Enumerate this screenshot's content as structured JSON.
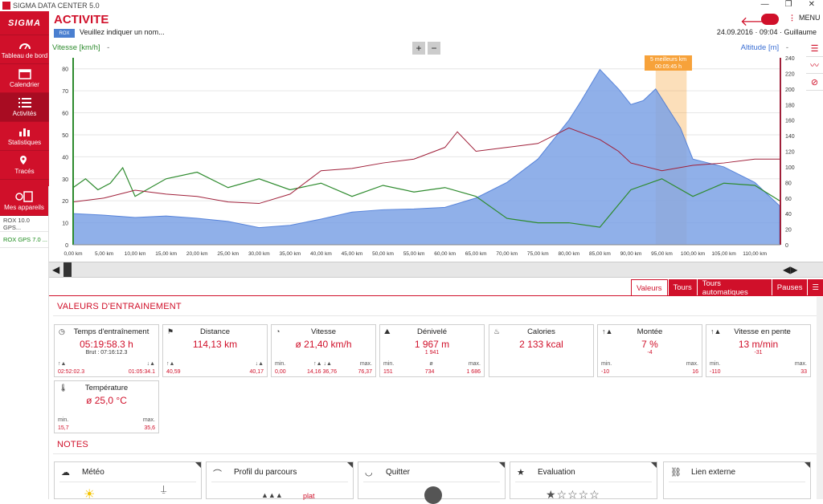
{
  "window": {
    "title": "SIGMA DATA CENTER 5.0"
  },
  "sidebar": {
    "logo": "SIGMA",
    "items": [
      {
        "label": "Tableau de bord"
      },
      {
        "label": "Calendrier"
      },
      {
        "label": "Activités"
      },
      {
        "label": "Statistiques"
      },
      {
        "label": "Tracés"
      },
      {
        "label": "Mes appareils"
      }
    ],
    "devices": [
      "ROX 10.0 GPS...",
      "ROX GPS 7.0 ..."
    ]
  },
  "header": {
    "title": "ACTIVITE",
    "bike_badge": "ROX",
    "name_placeholder": "Veuillez indiquer un nom...",
    "menu_label": "MENU",
    "date": "24.09.2016",
    "time": "09:04",
    "user": "Guillaume"
  },
  "chart": {
    "left_label": "Vitesse [km/h]",
    "left_label_suffix": "-",
    "right_label": "Altitude [m]",
    "right_label_suffix": "-",
    "zoom_in": "+",
    "zoom_out": "−",
    "highlight_line1": "5 meilleurs km",
    "highlight_line2": "00:05:45 h"
  },
  "chart_data": {
    "type": "area",
    "x_ticks": [
      "0,00 km",
      "5,00 km",
      "10,00 km",
      "15,00 km",
      "20,00 km",
      "25,00 km",
      "30,00 km",
      "35,00 km",
      "40,00 km",
      "45,00 km",
      "50,00 km",
      "55,00 km",
      "60,00 km",
      "65,00 km",
      "70,00 km",
      "75,00 km",
      "80,00 km",
      "85,00 km",
      "90,00 km",
      "95,00 km",
      "100,00 km",
      "105,00 km",
      "110,00 km"
    ],
    "xlim": [
      0,
      114.13
    ],
    "ylim_left": [
      0,
      85
    ],
    "ylim_right": [
      0,
      240
    ],
    "y_ticks_left": [
      0,
      10,
      20,
      30,
      40,
      50,
      60,
      70,
      80
    ],
    "y_ticks_right": [
      0,
      20,
      40,
      60,
      80,
      100,
      120,
      140,
      160,
      180,
      200,
      220,
      240
    ],
    "colors": {
      "altitude_fill": "#7da3e6",
      "altitude_line": "#3b6fd4",
      "speed": "#2e8b2e",
      "heartrate": "#a0203a",
      "highlight": "#f7a23a"
    },
    "altitude": {
      "x": [
        0,
        5,
        10,
        15,
        20,
        25,
        30,
        35,
        40,
        45,
        50,
        55,
        60,
        65,
        70,
        75,
        80,
        82,
        85,
        88,
        90,
        92,
        94,
        96,
        98,
        100,
        105,
        110,
        114
      ],
      "y": [
        40,
        38,
        35,
        37,
        34,
        30,
        22,
        25,
        33,
        42,
        45,
        46,
        48,
        60,
        80,
        110,
        160,
        185,
        225,
        200,
        180,
        185,
        200,
        175,
        150,
        110,
        100,
        80,
        50
      ]
    },
    "speed": {
      "x": [
        0,
        2,
        4,
        6,
        8,
        10,
        15,
        20,
        25,
        30,
        35,
        40,
        45,
        50,
        55,
        60,
        65,
        70,
        75,
        80,
        85,
        90,
        95,
        100,
        105,
        110,
        114
      ],
      "y": [
        26,
        30,
        25,
        28,
        35,
        22,
        30,
        33,
        26,
        30,
        25,
        28,
        22,
        27,
        24,
        26,
        22,
        12,
        10,
        10,
        8,
        25,
        30,
        22,
        28,
        27,
        20
      ]
    },
    "heartrate": {
      "x": [
        0,
        5,
        10,
        15,
        20,
        25,
        30,
        35,
        40,
        45,
        50,
        55,
        60,
        62,
        65,
        70,
        75,
        80,
        85,
        88,
        90,
        95,
        100,
        105,
        110,
        114
      ],
      "y": [
        55,
        60,
        70,
        65,
        62,
        55,
        53,
        65,
        95,
        98,
        105,
        110,
        125,
        145,
        120,
        125,
        130,
        150,
        135,
        120,
        105,
        95,
        102,
        105,
        110,
        110
      ]
    },
    "highlight_range_km": [
      94,
      99
    ]
  },
  "tabs": [
    "Valeurs",
    "Tours",
    "Tours automatiques",
    "Pauses"
  ],
  "values_section": {
    "title": "VALEURS D'ENTRAINEMENT",
    "cards": [
      {
        "title": "Temps d'entraînement",
        "value": "05:19:58.3 h",
        "sub": "Brut : 07:16:12.3",
        "row1": [
          "",
          ""
        ],
        "row2": [
          "02:52:02.3",
          "01:05:34.1"
        ]
      },
      {
        "title": "Distance",
        "value": "114,13 km",
        "sub": "",
        "row1": [
          "",
          ""
        ],
        "row2": [
          "40,59",
          "40,17"
        ]
      },
      {
        "title": "Vitesse",
        "value": "ø 21,40 km/h",
        "sub": "",
        "row1": [
          "min.",
          "max."
        ],
        "row2": [
          "0,00",
          "76,37"
        ],
        "mid": [
          "14,16",
          "36,76"
        ]
      },
      {
        "title": "Dénivelé",
        "value": "1 967 m",
        "sub": "1 941",
        "row1": [
          "min.",
          "max."
        ],
        "row2": [
          "151",
          "1 686"
        ],
        "mid": [
          "734"
        ]
      },
      {
        "title": "Calories",
        "value": "2 133 kcal",
        "sub": ""
      },
      {
        "title": "Montée",
        "value": "7 %",
        "sub": "-4",
        "row1": [
          "min.",
          "max."
        ],
        "row2": [
          "-10",
          "16"
        ]
      },
      {
        "title": "Vitesse en pente",
        "value": "13 m/min",
        "sub": "-31",
        "row1": [
          "min.",
          "max."
        ],
        "row2": [
          "-110",
          "33"
        ]
      },
      {
        "title": "Température",
        "value": "ø 25,0 °C",
        "sub": "",
        "row1": [
          "min.",
          "max."
        ],
        "row2": [
          "15,7",
          "35,6"
        ]
      }
    ]
  },
  "notes_section": {
    "title": "NOTES",
    "cards": [
      {
        "title": "Météo"
      },
      {
        "title": "Profil du parcours",
        "value": "plat"
      },
      {
        "title": "Quitter"
      },
      {
        "title": "Evaluation"
      },
      {
        "title": "Lien externe"
      }
    ]
  }
}
